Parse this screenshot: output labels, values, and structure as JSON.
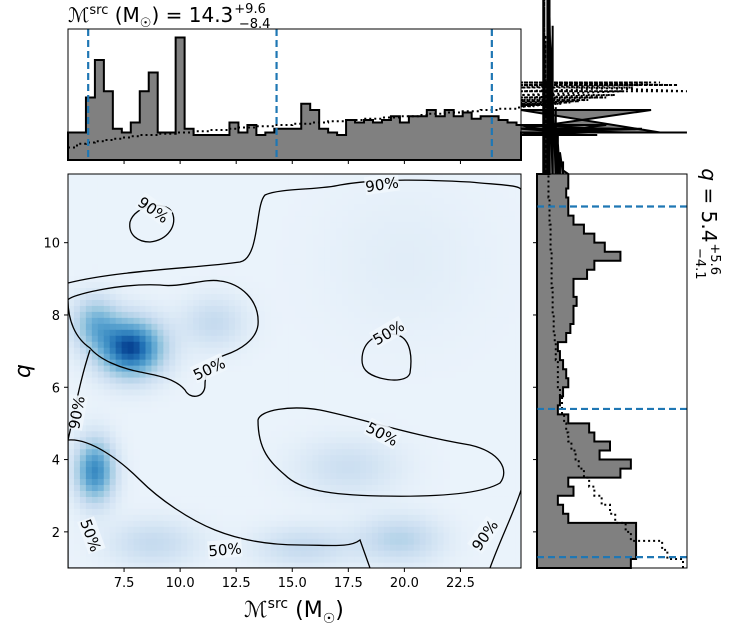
{
  "chart_data": {
    "type": "heatmap",
    "kind": "corner-plot",
    "top_title": {
      "parameter": "ℳ",
      "parameter_sup": "src",
      "unit": "(M",
      "unit_sub": "☉",
      "unit_close": ")",
      "median": "14.3",
      "upper": "+9.6",
      "lower": "−8.4"
    },
    "right_title": {
      "parameter": "q",
      "median": "5.4",
      "upper": "+5.6",
      "lower": "−4.1"
    },
    "xlabel": {
      "parameter": "ℳ",
      "sup": "src",
      "unit": "(M",
      "sub": "☉",
      "close": ")"
    },
    "ylabel": "q",
    "xlim": [
      5.0,
      25.2
    ],
    "ylim": [
      1.0,
      11.9
    ],
    "xticks": [
      "7.5",
      "10.0",
      "12.5",
      "15.0",
      "17.5",
      "20.0",
      "22.5"
    ],
    "xtick_values": [
      7.5,
      10,
      12.5,
      15,
      17.5,
      20,
      22.5
    ],
    "yticks": [
      "2",
      "4",
      "6",
      "8",
      "10"
    ],
    "ytick_values": [
      2,
      4,
      6,
      8,
      10
    ],
    "colormap": "Blues",
    "accent_color": "#1f77b4",
    "hist_fill_color": "#808080",
    "mc_quantiles": [
      5.9,
      14.3,
      23.9
    ],
    "q_quantiles": [
      1.3,
      5.4,
      11.0
    ],
    "hist_mc": {
      "edges_start": 5.0,
      "bin_width": 0.4,
      "posterior": [
        0.22,
        0.22,
        0.5,
        0.8,
        0.55,
        0.25,
        0.22,
        0.3,
        0.55,
        0.7,
        0.22,
        0.22,
        0.98,
        0.25,
        0.2,
        0.2,
        0.2,
        0.2,
        0.3,
        0.22,
        0.28,
        0.2,
        0.22,
        0.25,
        0.25,
        0.25,
        0.45,
        0.4,
        0.25,
        0.22,
        0.2,
        0.32,
        0.3,
        0.32,
        0.3,
        0.32,
        0.35,
        0.3,
        0.35,
        0.35,
        0.4,
        0.35,
        0.4,
        0.35,
        0.38,
        0.33,
        0.35,
        0.35,
        0.32,
        0.3,
        0.28,
        0.28,
        0.25,
        0.25,
        0.25,
        0.25,
        0.22,
        0.22,
        0.2,
        0.2,
        0.28,
        0.25,
        0.22,
        0.22,
        0.25,
        0.4,
        0.22,
        0.22,
        0.22,
        0.22
      ],
      "prior": [
        0.1,
        0.13,
        0.14,
        0.15,
        0.16,
        0.17,
        0.18,
        0.19,
        0.2,
        0.2,
        0.21,
        0.21,
        0.22,
        0.22,
        0.23,
        0.23,
        0.24,
        0.24,
        0.25,
        0.26,
        0.26,
        0.27,
        0.27,
        0.28,
        0.28,
        0.29,
        0.29,
        0.3,
        0.3,
        0.31,
        0.31,
        0.32,
        0.32,
        0.33,
        0.33,
        0.34,
        0.34,
        0.35,
        0.35,
        0.36,
        0.37,
        0.37,
        0.38,
        0.38,
        0.39,
        0.39,
        0.4,
        0.4,
        0.41,
        0.41,
        0.42,
        0.43,
        0.43,
        0.44,
        0.44,
        0.45,
        0.46,
        0.47,
        0.48,
        0.5,
        0.5,
        0.52,
        0.55,
        0.58,
        0.6,
        0.62,
        0.62,
        0.6,
        0.6,
        0.55
      ]
    },
    "hist_q": {
      "edges_start": 1.0,
      "bin_width": 0.25,
      "posterior": [
        0.9,
        0.95,
        0.95,
        0.95,
        0.95,
        0.3,
        0.25,
        0.2,
        0.35,
        0.3,
        0.8,
        0.9,
        0.6,
        0.7,
        0.55,
        0.5,
        0.3,
        0.2,
        0.22,
        0.25,
        0.3,
        0.28,
        0.25,
        0.22,
        0.2,
        0.28,
        0.32,
        0.35,
        0.35,
        0.38,
        0.35,
        0.35,
        0.48,
        0.55,
        0.8,
        0.65,
        0.55,
        0.45,
        0.35,
        0.3,
        0.3,
        0.28,
        0.3,
        0.3,
        0.25,
        0.25,
        0.22,
        0.2,
        0.2,
        0.18,
        0.18,
        0.18,
        0.15,
        0.12,
        0.12,
        0.1,
        0.1,
        0.1,
        0.1,
        0.15,
        0.15,
        0.12,
        0.12,
        0.1,
        0.1,
        0.1,
        0.1,
        0.1,
        0.1,
        0.12,
        0.12,
        0.12
      ],
      "prior": [
        1.4,
        1.25,
        1.2,
        0.9,
        0.85,
        0.75,
        0.7,
        0.62,
        0.55,
        0.5,
        0.45,
        0.4,
        0.37,
        0.33,
        0.3,
        0.28,
        0.26,
        0.24,
        0.24,
        0.22,
        0.2,
        0.2,
        0.2,
        0.18,
        0.18,
        0.17,
        0.16,
        0.16,
        0.15,
        0.15,
        0.15,
        0.14,
        0.14,
        0.14,
        0.14,
        0.13,
        0.13,
        0.13,
        0.12,
        0.12,
        0.12,
        0.11,
        0.11,
        0.11,
        0.11,
        0.1,
        0.1,
        0.1,
        0.1,
        0.1,
        0.1,
        0.09,
        0.09,
        0.09,
        0.09,
        0.08,
        0.08,
        0.08,
        0.08,
        0.08,
        0.07,
        0.07,
        0.07,
        0.07,
        0.07,
        0.07,
        0.06,
        0.06,
        0.06,
        0.06,
        0.06,
        0.06
      ]
    },
    "density_blobs": [
      {
        "x": 7.8,
        "y": 7.1,
        "sx": 1.0,
        "sy": 0.55,
        "w": 1.0
      },
      {
        "x": 6.2,
        "y": 7.8,
        "sx": 0.7,
        "sy": 0.5,
        "w": 0.45
      },
      {
        "x": 6.2,
        "y": 3.7,
        "sx": 0.6,
        "sy": 0.6,
        "w": 0.75
      },
      {
        "x": 11.5,
        "y": 7.8,
        "sx": 1.0,
        "sy": 0.5,
        "w": 0.22
      },
      {
        "x": 8.8,
        "y": 1.7,
        "sx": 1.4,
        "sy": 0.45,
        "w": 0.22
      },
      {
        "x": 15.5,
        "y": 1.6,
        "sx": 1.5,
        "sy": 0.4,
        "w": 0.22
      },
      {
        "x": 19.8,
        "y": 1.8,
        "sx": 1.3,
        "sy": 0.45,
        "w": 0.28
      },
      {
        "x": 17.5,
        "y": 3.8,
        "sx": 1.6,
        "sy": 0.55,
        "w": 0.18
      },
      {
        "x": 20.0,
        "y": 9.5,
        "sx": 2.5,
        "sy": 1.5,
        "w": 0.05
      }
    ],
    "contour_labels": [
      {
        "text": "90%",
        "x": 19.0,
        "y": 11.6,
        "rot": -8
      },
      {
        "text": "90%",
        "x": 8.8,
        "y": 10.9,
        "rot": 35
      },
      {
        "text": "90%",
        "x": 5.4,
        "y": 5.3,
        "rot": -80
      },
      {
        "text": "90%",
        "x": 23.6,
        "y": 1.9,
        "rot": -55
      },
      {
        "text": "50%",
        "x": 11.3,
        "y": 6.5,
        "rot": -25
      },
      {
        "text": "50%",
        "x": 19.3,
        "y": 7.5,
        "rot": -30
      },
      {
        "text": "50%",
        "x": 19.0,
        "y": 4.7,
        "rot": 28
      },
      {
        "text": "50%",
        "x": 6.0,
        "y": 1.9,
        "rot": 70
      },
      {
        "text": "50%",
        "x": 12.0,
        "y": 1.5,
        "rot": -5
      }
    ]
  }
}
